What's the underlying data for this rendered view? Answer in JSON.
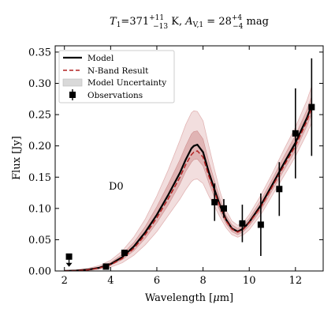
{
  "chart_data": {
    "type": "line",
    "title": {
      "t_sym": "T",
      "t_sub": "1",
      "t_val": "=371",
      "t_up": "+11",
      "t_dn": "−13",
      "t_unit": " K, ",
      "a_sym": "A",
      "a_sub": "V,1",
      "a_val": " = 28",
      "a_up": "+4",
      "a_dn": "−4",
      "a_unit": " mag"
    },
    "xlabel": {
      "pre": "Wavelength [",
      "mu": "μ",
      "post": "m]"
    },
    "ylabel": "Flux [Jy]",
    "annotation": "D0",
    "xlim": [
      1.6,
      13.2
    ],
    "ylim": [
      0.0,
      0.36
    ],
    "xticks": [
      2,
      4,
      6,
      8,
      10,
      12
    ],
    "xtick_labels": [
      "2",
      "4",
      "6",
      "8",
      "10",
      "12"
    ],
    "yticks": [
      0.0,
      0.05,
      0.1,
      0.15,
      0.2,
      0.25,
      0.3,
      0.35
    ],
    "ytick_labels": [
      "0.00",
      "0.05",
      "0.10",
      "0.15",
      "0.20",
      "0.25",
      "0.30",
      "0.35"
    ],
    "legend_position": "top-left",
    "legend": [
      {
        "label": "Model",
        "kind": "line"
      },
      {
        "label": "N-Band Result",
        "kind": "dashed"
      },
      {
        "label": "Model Uncertainty",
        "kind": "band"
      },
      {
        "label": "Observations",
        "kind": "marker"
      }
    ],
    "colors": {
      "model": "#000000",
      "nband": "#b22222",
      "inner_band": "#d9a3a3",
      "outer_band": "#edd3d3",
      "observations": "#000000"
    },
    "x": [
      2.0,
      2.5,
      3.0,
      3.5,
      4.0,
      4.5,
      5.0,
      5.5,
      6.0,
      6.5,
      7.0,
      7.25,
      7.5,
      7.6,
      7.75,
      8.0,
      8.25,
      8.5,
      8.75,
      9.0,
      9.25,
      9.5,
      9.75,
      10.0,
      10.5,
      11.0,
      11.5,
      12.0,
      12.5,
      12.7
    ],
    "series": [
      {
        "name": "Model",
        "values": [
          0.0,
          0.0005,
          0.002,
          0.005,
          0.011,
          0.022,
          0.039,
          0.062,
          0.09,
          0.122,
          0.157,
          0.178,
          0.196,
          0.2,
          0.202,
          0.19,
          0.158,
          0.13,
          0.103,
          0.082,
          0.068,
          0.063,
          0.068,
          0.078,
          0.105,
          0.138,
          0.172,
          0.205,
          0.245,
          0.265
        ]
      },
      {
        "name": "N-Band Result",
        "values": [
          0.0,
          0.0004,
          0.0018,
          0.0045,
          0.01,
          0.02,
          0.036,
          0.058,
          0.085,
          0.116,
          0.15,
          0.17,
          0.186,
          0.19,
          0.192,
          0.182,
          0.152,
          0.126,
          0.101,
          0.08,
          0.067,
          0.062,
          0.067,
          0.077,
          0.102,
          0.135,
          0.168,
          0.2,
          0.24,
          0.26
        ]
      }
    ],
    "uncertainty_inner": {
      "name": "Model Uncertainty",
      "lower": [
        0.0,
        0.0004,
        0.0015,
        0.004,
        0.009,
        0.018,
        0.032,
        0.052,
        0.077,
        0.106,
        0.139,
        0.159,
        0.174,
        0.178,
        0.179,
        0.168,
        0.141,
        0.117,
        0.094,
        0.075,
        0.063,
        0.058,
        0.063,
        0.072,
        0.097,
        0.129,
        0.161,
        0.192,
        0.232,
        0.251
      ],
      "upper": [
        0.0005,
        0.001,
        0.003,
        0.0065,
        0.0135,
        0.0265,
        0.0455,
        0.071,
        0.103,
        0.139,
        0.178,
        0.2,
        0.219,
        0.223,
        0.224,
        0.211,
        0.175,
        0.144,
        0.113,
        0.089,
        0.074,
        0.068,
        0.073,
        0.084,
        0.113,
        0.147,
        0.183,
        0.217,
        0.258,
        0.279
      ]
    },
    "uncertainty_outer": {
      "lower": [
        0.0,
        0.0002,
        0.0008,
        0.0025,
        0.006,
        0.013,
        0.025,
        0.042,
        0.063,
        0.089,
        0.115,
        0.13,
        0.143,
        0.146,
        0.147,
        0.14,
        0.12,
        0.103,
        0.085,
        0.069,
        0.058,
        0.054,
        0.058,
        0.066,
        0.09,
        0.121,
        0.152,
        0.183,
        0.22,
        0.237
      ],
      "upper": [
        0.001,
        0.002,
        0.004,
        0.0085,
        0.017,
        0.032,
        0.054,
        0.083,
        0.12,
        0.162,
        0.209,
        0.234,
        0.253,
        0.256,
        0.255,
        0.24,
        0.2,
        0.162,
        0.125,
        0.097,
        0.08,
        0.073,
        0.078,
        0.09,
        0.121,
        0.156,
        0.194,
        0.23,
        0.273,
        0.295
      ]
    },
    "observations": {
      "name": "Observations",
      "points": [
        {
          "x": 2.2,
          "y": 0.023,
          "yerr": 0.0,
          "upper_limit": true
        },
        {
          "x": 3.8,
          "y": 0.007,
          "yerr": 0.002
        },
        {
          "x": 4.6,
          "y": 0.029,
          "yerr": 0.004
        },
        {
          "x": 8.5,
          "y": 0.11,
          "yerr": 0.03
        },
        {
          "x": 8.9,
          "y": 0.1,
          "yerr": 0.015
        },
        {
          "x": 9.7,
          "y": 0.076,
          "yerr": 0.03
        },
        {
          "x": 10.5,
          "y": 0.074,
          "yerr": 0.05
        },
        {
          "x": 11.3,
          "y": 0.131,
          "yerr": 0.043
        },
        {
          "x": 12.0,
          "y": 0.22,
          "yerr": 0.072
        },
        {
          "x": 12.7,
          "y": 0.262,
          "yerr": 0.078
        }
      ]
    }
  }
}
